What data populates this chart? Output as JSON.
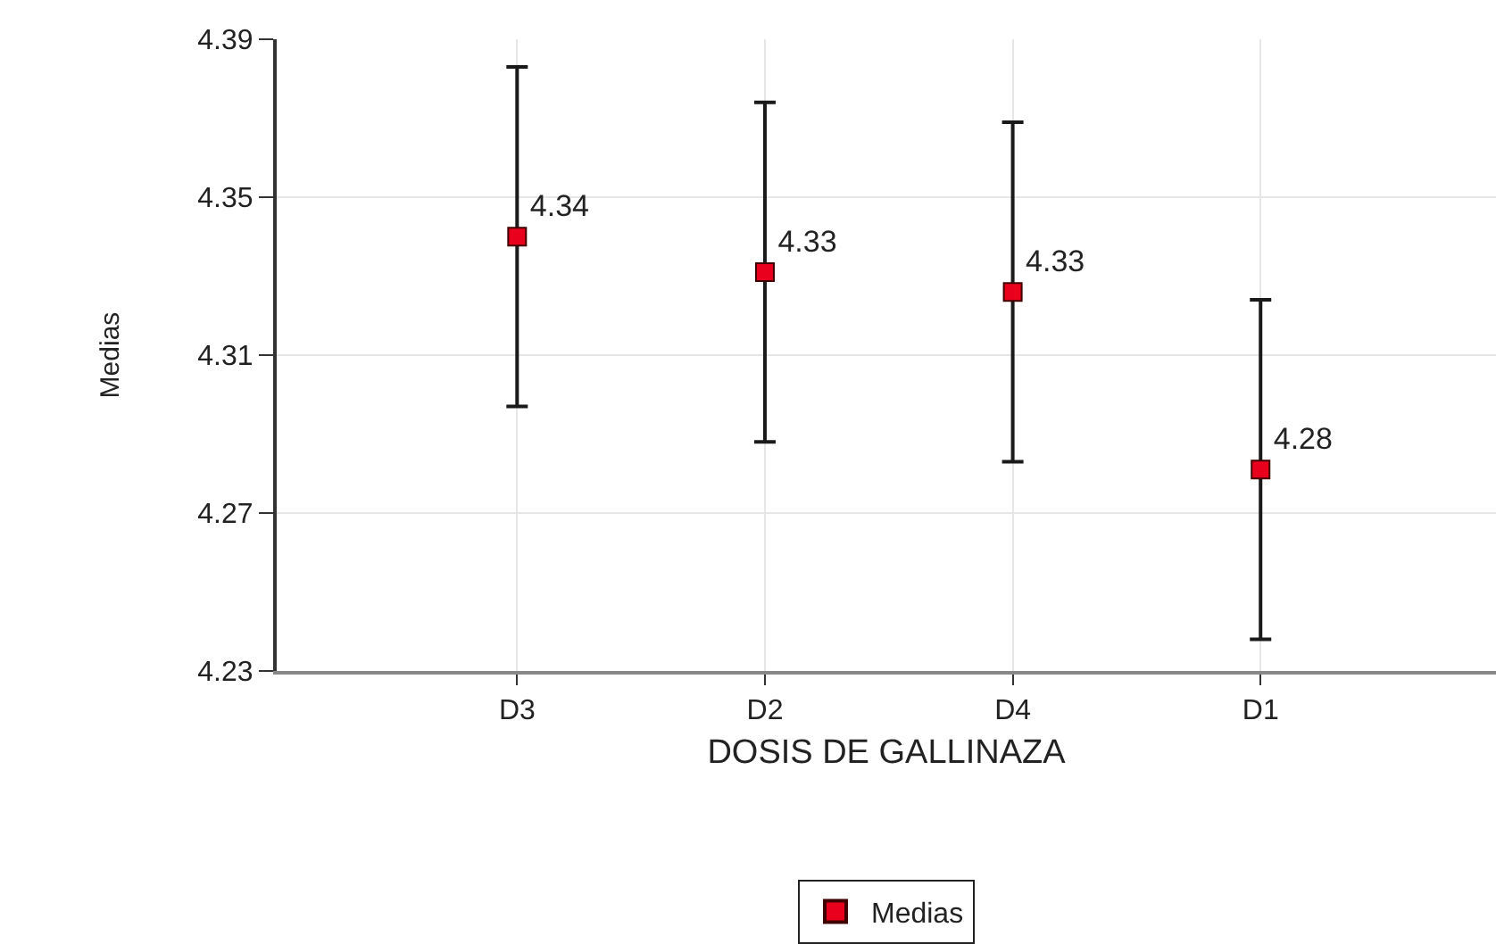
{
  "chart_data": {
    "type": "scatter",
    "xlabel": "DOSIS DE GALLINAZA",
    "ylabel": "Medias",
    "categories": [
      "D3",
      "D2",
      "D4",
      "D1"
    ],
    "series": [
      {
        "name": "Medias",
        "color": "#e8001c",
        "values": [
          4.34,
          4.331,
          4.326,
          4.281
        ],
        "errors": [
          0.043,
          0.043,
          0.043,
          0.043
        ],
        "value_labels": [
          "4.34",
          "4.33",
          "4.33",
          "4.28"
        ]
      }
    ],
    "ylim": [
      4.23,
      4.39
    ],
    "yticks": [
      4.23,
      4.27,
      4.31,
      4.35,
      4.39
    ],
    "grid": true,
    "legend": "bottom",
    "marker": "square"
  }
}
